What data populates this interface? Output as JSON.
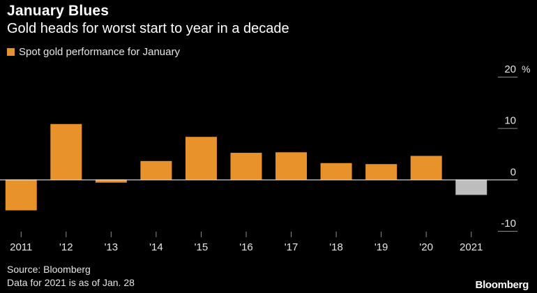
{
  "header": {
    "title": "January Blues",
    "subtitle": "Gold heads for worst start to year in a decade"
  },
  "legend": {
    "label": "Spot gold performance for January",
    "color": "#e8922c"
  },
  "footer": {
    "source": "Source: Bloomberg",
    "note": "Data for 2021 is as of Jan. 28",
    "brand": "Bloomberg"
  },
  "colors": {
    "bar": "#e8922c",
    "bar_highlight": "#bdbdbd",
    "zero_line": "#ffffff",
    "tick_line": "#8c8c8c",
    "text": "#e6e6e6"
  },
  "chart_data": {
    "type": "bar",
    "categories": [
      "2011",
      "'12",
      "'13",
      "'14",
      "'15",
      "'16",
      "'17",
      "'18",
      "'19",
      "'20",
      "2021"
    ],
    "series": [
      {
        "name": "Spot gold performance for January",
        "values": [
          -6.0,
          10.8,
          -0.6,
          3.6,
          8.3,
          5.2,
          5.3,
          3.2,
          3.0,
          4.6,
          -3.0
        ]
      }
    ],
    "highlight_index": 10,
    "ylim": [
      -10,
      20
    ],
    "yticks": [
      -10,
      0,
      10,
      20
    ],
    "ytick_labels": [
      "-10",
      "0",
      "10",
      "20"
    ],
    "yunit": "%",
    "title": "January Blues",
    "subtitle": "Gold heads for worst start to year in a decade",
    "xlabel": "",
    "ylabel": "",
    "grid": false,
    "legend_position": "top-left"
  }
}
